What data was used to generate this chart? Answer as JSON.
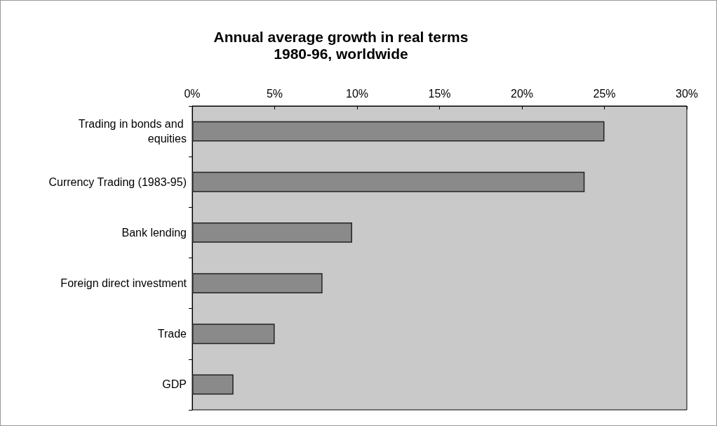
{
  "chart_data": {
    "type": "bar",
    "orientation": "horizontal",
    "title": "Annual average growth in real terms\n1980-96, worldwide",
    "categories": [
      "Trading in bonds and equities",
      "Currency Trading (1983-95)",
      "Bank lending",
      "Foreign direct investment",
      "Trade",
      "GDP"
    ],
    "values": [
      25,
      23.8,
      9.7,
      7.9,
      5.0,
      2.5
    ],
    "color": "#8a8a8a",
    "xlim": [
      0,
      30
    ],
    "xticks": [
      {
        "value": 0,
        "label": "0%"
      },
      {
        "value": 5,
        "label": "5%"
      },
      {
        "value": 10,
        "label": "10%"
      },
      {
        "value": 15,
        "label": "15%"
      },
      {
        "value": 20,
        "label": "20%"
      },
      {
        "value": 25,
        "label": "25%"
      },
      {
        "value": 30,
        "label": "30%"
      }
    ],
    "grid": false
  }
}
